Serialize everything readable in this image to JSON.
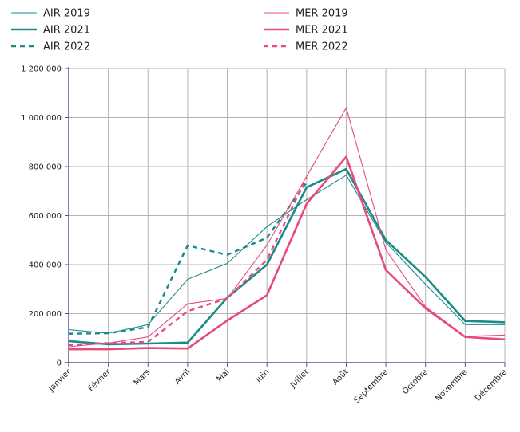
{
  "chart_data": {
    "type": "line",
    "title": "",
    "xlabel": "",
    "ylabel": "",
    "ylim": [
      0,
      1200000
    ],
    "grid": true,
    "legend_position": "top",
    "categories": [
      "Janvier",
      "Février",
      "Mars",
      "Avril",
      "Mai",
      "Juin",
      "Juillet",
      "Août",
      "Septembre",
      "Octobre",
      "Novembre",
      "Décembre"
    ],
    "y_ticks": [
      {
        "value": 0,
        "label": "0"
      },
      {
        "value": 200000,
        "label": "200 000"
      },
      {
        "value": 400000,
        "label": "400 000"
      },
      {
        "value": 600000,
        "label": "600 000"
      },
      {
        "value": 800000,
        "label": "800 000"
      },
      {
        "value": 1000000,
        "label": "1 000 000"
      },
      {
        "value": 1200000,
        "label": "1 200 000"
      }
    ],
    "series": [
      {
        "name": "AIR 2019",
        "color": "#1a8a8a",
        "style": "thin",
        "values": [
          135000,
          120000,
          155000,
          340000,
          405000,
          555000,
          665000,
          765000,
          490000,
          320000,
          155000,
          155000
        ]
      },
      {
        "name": "AIR 2021",
        "color": "#1a8a8a",
        "style": "thick",
        "values": [
          88000,
          75000,
          78000,
          82000,
          265000,
          400000,
          715000,
          790000,
          500000,
          350000,
          170000,
          165000
        ]
      },
      {
        "name": "AIR 2022",
        "color": "#1a8a8a",
        "style": "dashed",
        "values": [
          118000,
          120000,
          145000,
          478000,
          440000,
          510000,
          735000,
          null,
          null,
          null,
          null,
          null
        ]
      },
      {
        "name": "MER 2019",
        "color": "#e84a7e",
        "style": "thin",
        "values": [
          65000,
          80000,
          105000,
          240000,
          262000,
          480000,
          760000,
          1040000,
          460000,
          228000,
          107000,
          113000
        ]
      },
      {
        "name": "MER 2021",
        "color": "#e84a7e",
        "style": "thick",
        "values": [
          55000,
          55000,
          60000,
          58000,
          172000,
          275000,
          648000,
          840000,
          378000,
          222000,
          105000,
          95000
        ]
      },
      {
        "name": "MER 2022",
        "color": "#e84a7e",
        "style": "dashed",
        "values": [
          72000,
          80000,
          85000,
          210000,
          262000,
          420000,
          755000,
          null,
          null,
          null,
          null,
          null
        ]
      }
    ]
  }
}
